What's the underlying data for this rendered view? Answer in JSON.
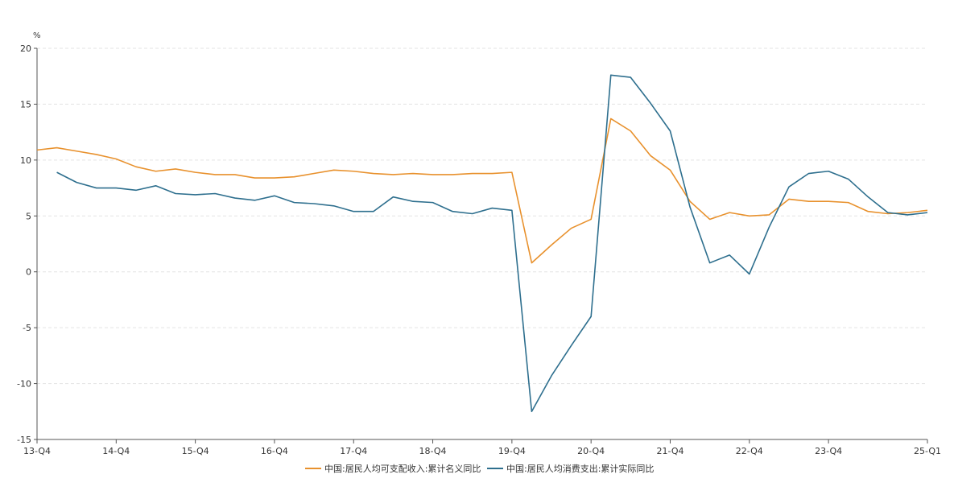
{
  "chart_data": {
    "type": "line",
    "y_unit": "%",
    "ylim": [
      -15,
      20
    ],
    "y_ticks": [
      20,
      15,
      10,
      5,
      0,
      -5,
      -10,
      -15
    ],
    "grid": "horizontal dashed",
    "legend_position": "bottom-center",
    "x": [
      "13-Q4",
      "14-Q1",
      "14-Q2",
      "14-Q3",
      "14-Q4",
      "15-Q1",
      "15-Q2",
      "15-Q3",
      "15-Q4",
      "16-Q1",
      "16-Q2",
      "16-Q3",
      "16-Q4",
      "17-Q1",
      "17-Q2",
      "17-Q3",
      "17-Q4",
      "18-Q1",
      "18-Q2",
      "18-Q3",
      "18-Q4",
      "19-Q1",
      "19-Q2",
      "19-Q3",
      "19-Q4",
      "20-Q1",
      "20-Q2",
      "20-Q3",
      "20-Q4",
      "21-Q1",
      "21-Q2",
      "21-Q3",
      "21-Q4",
      "22-Q1",
      "22-Q2",
      "22-Q3",
      "22-Q4",
      "23-Q1",
      "23-Q2",
      "23-Q3",
      "23-Q4",
      "24-Q1",
      "24-Q2",
      "24-Q3",
      "24-Q4",
      "25-Q1"
    ],
    "x_tick_labels": [
      "13-Q4",
      "14-Q4",
      "15-Q4",
      "16-Q4",
      "17-Q4",
      "18-Q4",
      "19-Q4",
      "20-Q4",
      "21-Q4",
      "22-Q4",
      "23-Q4",
      "25-Q1"
    ],
    "series": [
      {
        "name": "中国:居民人均可支配收入:累计名义同比",
        "color": "#e8912d",
        "values": [
          10.9,
          11.1,
          10.8,
          10.5,
          10.1,
          9.4,
          9.0,
          9.2,
          8.9,
          8.7,
          8.7,
          8.4,
          8.4,
          8.5,
          8.8,
          9.1,
          9.0,
          8.8,
          8.7,
          8.8,
          8.7,
          8.7,
          8.8,
          8.8,
          8.9,
          0.8,
          2.4,
          3.9,
          4.7,
          13.7,
          12.6,
          10.4,
          9.1,
          6.3,
          4.7,
          5.3,
          5.0,
          5.1,
          6.5,
          6.3,
          6.3,
          6.2,
          5.4,
          5.2,
          5.3,
          5.5
        ]
      },
      {
        "name": "中国:居民人均消费支出:累计实际同比",
        "color": "#2e6f8e",
        "values": [
          null,
          8.9,
          8.0,
          7.5,
          7.5,
          7.3,
          7.7,
          7.0,
          6.9,
          7.0,
          6.6,
          6.4,
          6.8,
          6.2,
          6.1,
          5.9,
          5.4,
          5.4,
          6.7,
          6.3,
          6.2,
          5.4,
          5.2,
          5.7,
          5.5,
          -12.5,
          -9.3,
          -6.6,
          -4.0,
          17.6,
          17.4,
          15.1,
          12.6,
          5.8,
          0.8,
          1.5,
          -0.2,
          4.0,
          7.6,
          8.8,
          9.0,
          8.3,
          6.7,
          5.3,
          5.1,
          5.3
        ]
      }
    ]
  }
}
